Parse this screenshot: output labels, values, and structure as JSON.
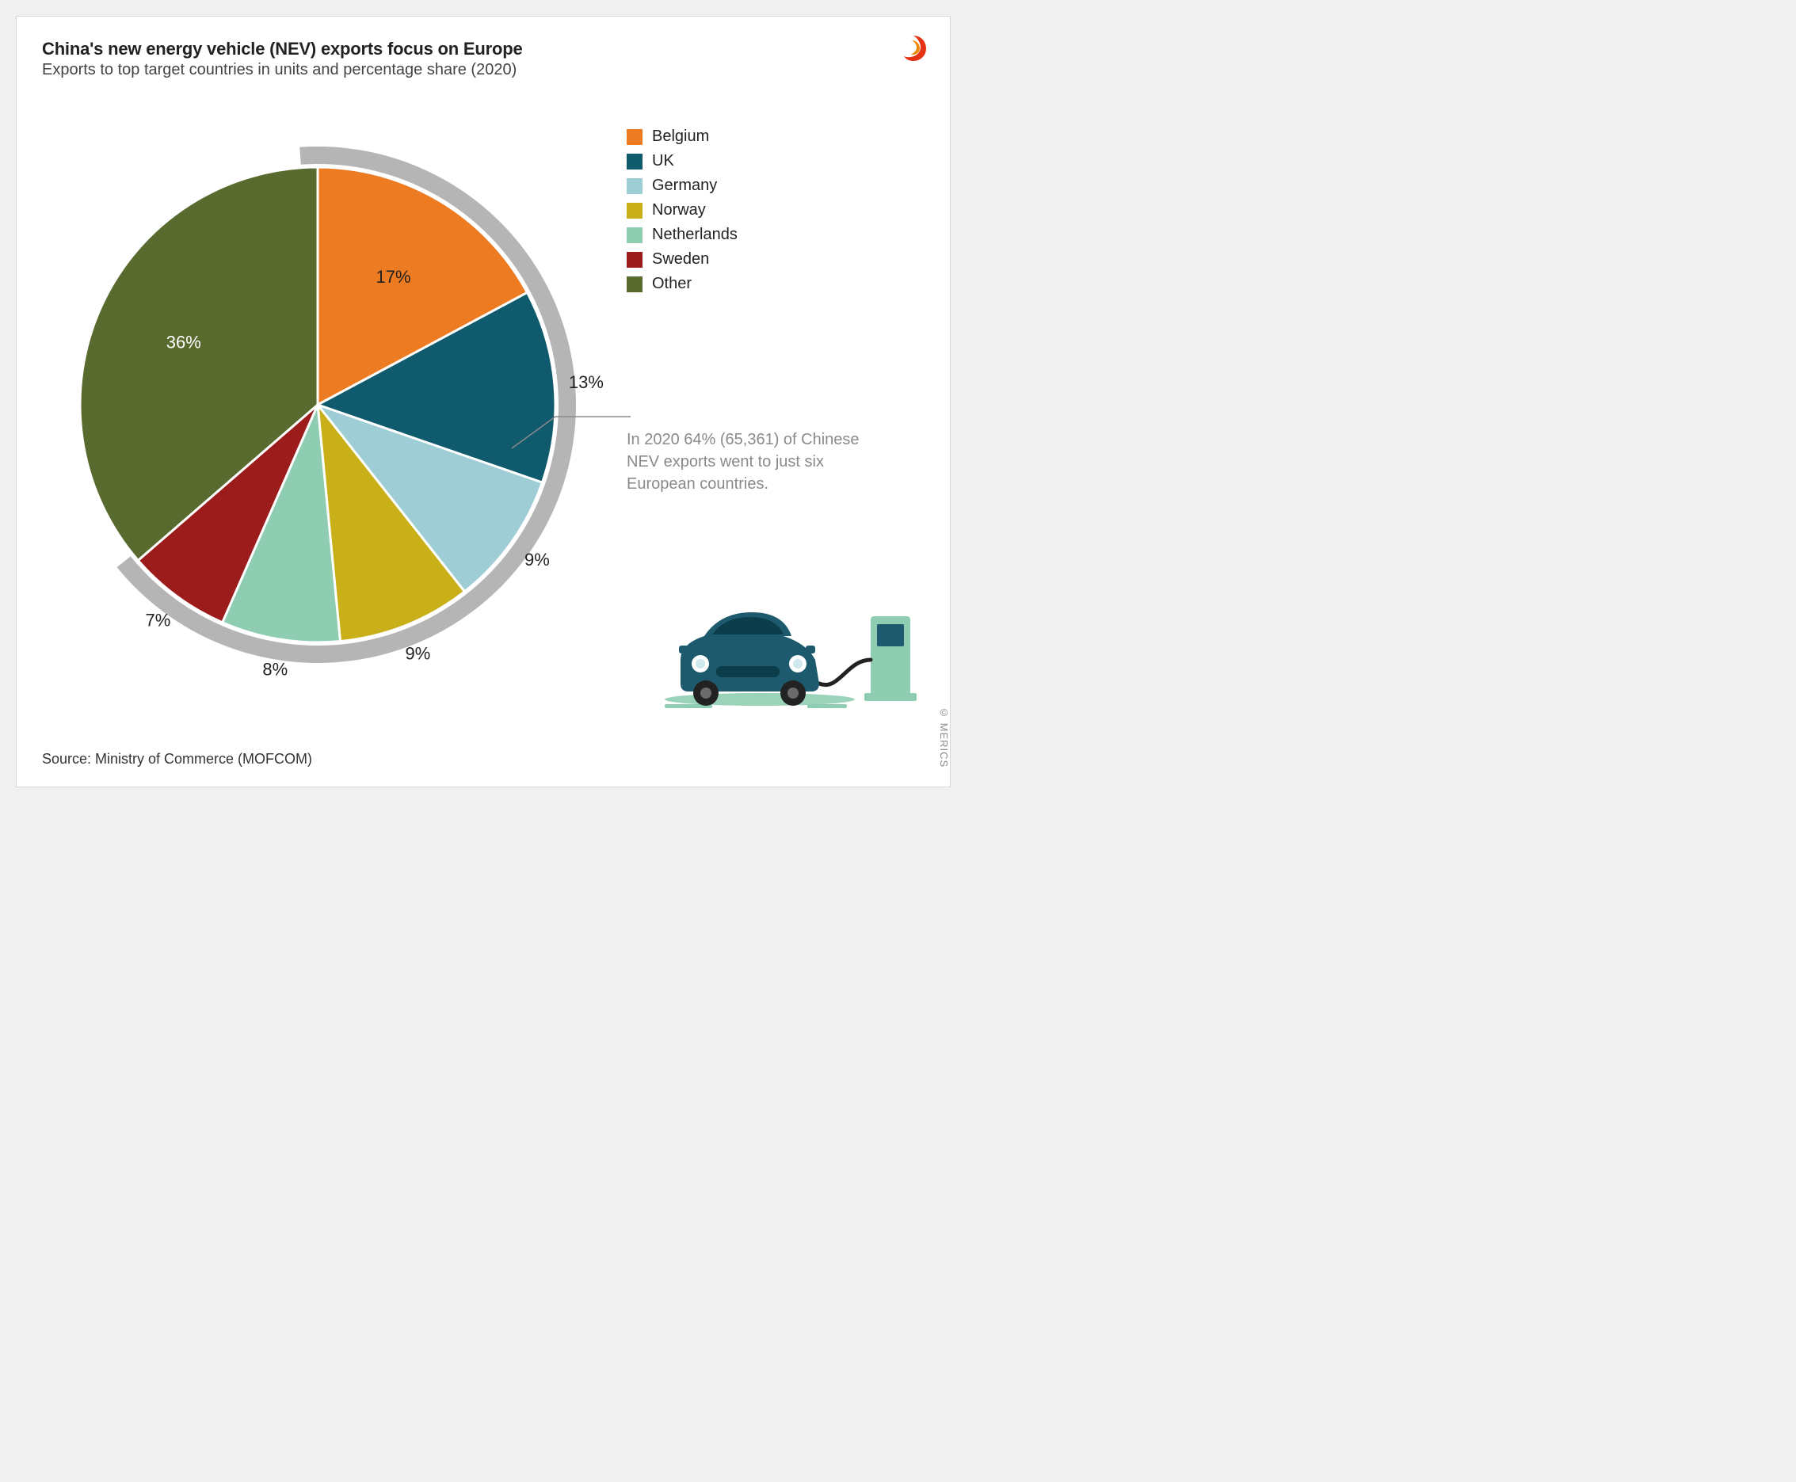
{
  "title": "China's new energy vehicle (NEV) exports focus on Europe",
  "subtitle": "Exports to top target countries in units and percentage share (2020)",
  "source": "Source: Ministry of Commerce (MOFCOM)",
  "copyright": "© MERICS",
  "annotation": "In 2020 64% (65,361) of Chinese NEV exports went to just six European countries.",
  "chart": {
    "type": "pie",
    "background_color": "#ffffff",
    "ring_color": "#b5b5b5",
    "ring_width": 22,
    "radius": 300,
    "stroke": "#ffffff",
    "stroke_width": 3,
    "label_fontsize": 22,
    "slices": [
      {
        "label": "Belgium",
        "value": 17,
        "color": "#ed7b22",
        "display": "17%",
        "text_color": "#222222"
      },
      {
        "label": "UK",
        "value": 13,
        "color": "#105a6e",
        "display": "13%",
        "text_color": "#222222"
      },
      {
        "label": "Germany",
        "value": 9,
        "color": "#9fcdd6",
        "display": "9%",
        "text_color": "#222222"
      },
      {
        "label": "Norway",
        "value": 9,
        "color": "#c9b018",
        "display": "9%",
        "text_color": "#222222"
      },
      {
        "label": "Netherlands",
        "value": 8,
        "color": "#8fcdb2",
        "display": "8%",
        "text_color": "#222222"
      },
      {
        "label": "Sweden",
        "value": 7,
        "color": "#9c1c1c",
        "display": "7%",
        "text_color": "#ffffff"
      },
      {
        "label": "Other",
        "value": 36,
        "color": "#596a2e",
        "display": "36%",
        "text_color": "#ffffff"
      }
    ],
    "highlight_range_deg": {
      "start": 0,
      "end": 227
    }
  },
  "legend": {
    "fontsize": 20,
    "swatch_size": 20,
    "items": [
      {
        "label": "Belgium",
        "color": "#ed7b22"
      },
      {
        "label": "UK",
        "color": "#105a6e"
      },
      {
        "label": "Germany",
        "color": "#9fcdd6"
      },
      {
        "label": "Norway",
        "color": "#c9b018"
      },
      {
        "label": "Netherlands",
        "color": "#8fcdb2"
      },
      {
        "label": "Sweden",
        "color": "#9c1c1c"
      },
      {
        "label": "Other",
        "color": "#596a2e"
      }
    ]
  },
  "logo_colors": {
    "outer": "#e53212",
    "inner": "#f08700"
  },
  "illustration": {
    "car_color": "#1d5a6e",
    "pump_color": "#8fcdb2",
    "ground_color": "#8fcdb2",
    "cable_color": "#222222"
  }
}
